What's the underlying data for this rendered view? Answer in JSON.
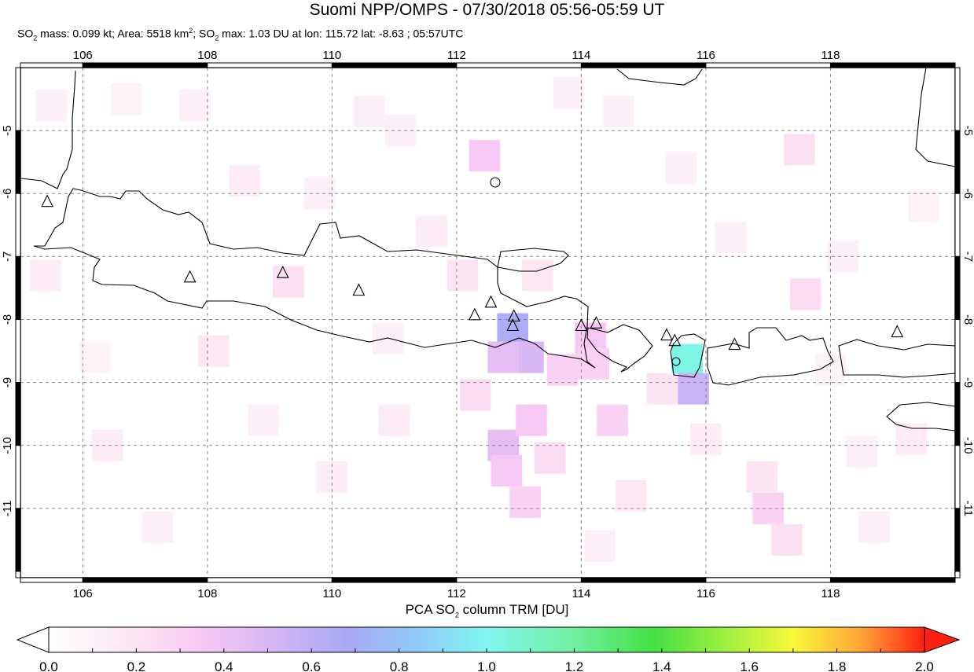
{
  "title": "Suomi NPP/OMPS - 07/30/2018 05:56-05:59 UT",
  "subtitle": {
    "p1": "SO",
    "s1": "2",
    "p2": " mass: 0.099 kt; Area: 5518 km",
    "s2": "2",
    "p3": "; SO",
    "s3": "2",
    "p4": " max: 1.03 DU at lon: 115.72 lat: -8.63 ; 05:57UTC"
  },
  "map": {
    "lon_range": [
      105,
      120
    ],
    "lat_range": [
      -12.1,
      -4
    ],
    "lon_ticks": [
      "106",
      "108",
      "110",
      "112",
      "114",
      "116",
      "118"
    ],
    "lat_ticks": [
      "-5",
      "-6",
      "-7",
      "-8",
      "-9",
      "-10",
      "-11"
    ],
    "grid": "dashed",
    "coastline_color": "#000000",
    "volcanoes": [
      [
        105.43,
        -6.13
      ],
      [
        107.72,
        -7.33
      ],
      [
        109.21,
        -7.26
      ],
      [
        110.43,
        -7.54
      ],
      [
        112.29,
        -7.93
      ],
      [
        112.55,
        -7.73
      ],
      [
        112.92,
        -7.95
      ],
      [
        112.9,
        -8.1
      ],
      [
        114.0,
        -8.1
      ],
      [
        114.24,
        -8.06
      ],
      [
        115.37,
        -8.25
      ],
      [
        115.5,
        -8.34
      ],
      [
        116.46,
        -8.4
      ],
      [
        119.07,
        -8.2
      ]
    ],
    "so2_cells": [
      [
        112.9,
        -8.15,
        0.65
      ],
      [
        113.15,
        -8.6,
        0.5
      ],
      [
        112.75,
        -8.6,
        0.45
      ],
      [
        115.7,
        -8.64,
        1.03
      ],
      [
        115.8,
        -9.1,
        0.55
      ],
      [
        114.15,
        -8.3,
        0.35
      ],
      [
        114.2,
        -8.7,
        0.3
      ],
      [
        112.45,
        -5.4,
        0.35
      ],
      [
        112.75,
        -10.0,
        0.45
      ],
      [
        112.8,
        -10.4,
        0.35
      ],
      [
        113.2,
        -9.6,
        0.35
      ],
      [
        113.1,
        -10.9,
        0.3
      ],
      [
        113.5,
        -10.2,
        0.25
      ],
      [
        117.0,
        -11.0,
        0.3
      ],
      [
        117.3,
        -11.5,
        0.22
      ],
      [
        116.9,
        -10.5,
        0.2
      ],
      [
        117.5,
        -5.3,
        0.22
      ],
      [
        117.6,
        -7.6,
        0.25
      ],
      [
        114.5,
        -9.6,
        0.3
      ],
      [
        115.3,
        -9.1,
        0.2
      ],
      [
        109.3,
        -7.4,
        0.22
      ],
      [
        108.1,
        -8.5,
        0.18
      ],
      [
        106.4,
        -10.0,
        0.15
      ],
      [
        105.4,
        -7.3,
        0.15
      ],
      [
        108.6,
        -5.8,
        0.15
      ],
      [
        110.6,
        -4.7,
        0.12
      ],
      [
        111.1,
        -5.0,
        0.12
      ],
      [
        112.1,
        -7.3,
        0.2
      ],
      [
        113.3,
        -7.3,
        0.18
      ],
      [
        113.8,
        -4.4,
        0.12
      ],
      [
        114.6,
        -4.7,
        0.12
      ],
      [
        115.6,
        -5.6,
        0.12
      ],
      [
        116.4,
        -6.7,
        0.12
      ],
      [
        118.2,
        -7.0,
        0.12
      ],
      [
        119.3,
        -9.9,
        0.15
      ],
      [
        118.5,
        -10.1,
        0.12
      ],
      [
        110.0,
        -10.5,
        0.15
      ],
      [
        111.0,
        -9.6,
        0.15
      ],
      [
        107.2,
        -11.3,
        0.12
      ],
      [
        114.3,
        -11.6,
        0.12
      ],
      [
        105.5,
        -4.6,
        0.12
      ],
      [
        106.7,
        -4.5,
        0.1
      ],
      [
        107.8,
        -4.6,
        0.12
      ],
      [
        109.8,
        -6.0,
        0.12
      ],
      [
        111.6,
        -6.6,
        0.15
      ],
      [
        114.8,
        -10.8,
        0.18
      ],
      [
        116.0,
        -9.9,
        0.15
      ],
      [
        118.0,
        -8.8,
        0.1
      ],
      [
        119.5,
        -6.2,
        0.1
      ],
      [
        112.3,
        -9.2,
        0.25
      ],
      [
        110.9,
        -8.3,
        0.12
      ],
      [
        108.9,
        -9.6,
        0.12
      ],
      [
        106.2,
        -8.6,
        0.1
      ],
      [
        118.7,
        -11.3,
        0.12
      ],
      [
        113.7,
        -8.8,
        0.3
      ]
    ]
  },
  "colorbar": {
    "title_p1": "PCA SO",
    "title_sub": "2",
    "title_p2": " column TRM [DU]",
    "ticks": [
      "0.0",
      "0.2",
      "0.4",
      "0.6",
      "0.8",
      "1.0",
      "1.2",
      "1.4",
      "1.6",
      "1.8",
      "2.0"
    ],
    "range": [
      0,
      2.0
    ],
    "stops": [
      [
        0,
        "#ffffff"
      ],
      [
        0.2,
        "#fce4f2"
      ],
      [
        0.35,
        "#f8c8f4"
      ],
      [
        0.5,
        "#d8b8f4"
      ],
      [
        0.68,
        "#a8a8f6"
      ],
      [
        0.85,
        "#90ccf8"
      ],
      [
        1.0,
        "#80f6f0"
      ],
      [
        1.2,
        "#70f0a0"
      ],
      [
        1.38,
        "#44e044"
      ],
      [
        1.55,
        "#a0f040"
      ],
      [
        1.7,
        "#f8f838"
      ],
      [
        1.85,
        "#ffa838"
      ],
      [
        2.0,
        "#ff2010"
      ]
    ]
  }
}
